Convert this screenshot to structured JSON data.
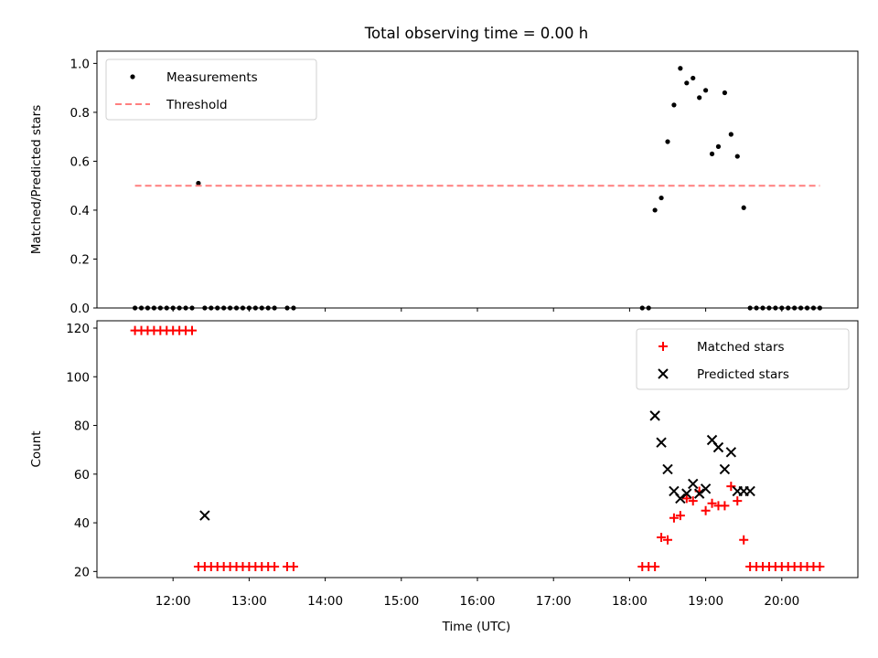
{
  "chart_data": {
    "title": "Total observing time = 0.00 h",
    "xlabel": "Time (UTC)",
    "xlim": [
      "11:00",
      "21:00"
    ],
    "xticks": [
      "12:00",
      "13:00",
      "14:00",
      "15:00",
      "16:00",
      "17:00",
      "18:00",
      "19:00",
      "20:00"
    ],
    "panels": [
      {
        "type": "scatter",
        "ylabel": "Matched/Predicted stars",
        "ylim": [
          0,
          1.05
        ],
        "yticks": [
          "0.0",
          "0.2",
          "0.4",
          "0.6",
          "0.8",
          "1.0"
        ],
        "legend_position": "top-left",
        "series": [
          {
            "name": "Measurements",
            "marker": "dot",
            "color": "#000000",
            "x": [
              "11:30",
              "11:35",
              "11:40",
              "11:45",
              "11:50",
              "11:55",
              "12:00",
              "12:05",
              "12:10",
              "12:15",
              "12:20",
              "12:25",
              "12:30",
              "12:35",
              "12:40",
              "12:45",
              "12:50",
              "12:55",
              "13:00",
              "13:05",
              "13:10",
              "13:15",
              "13:20",
              "13:30",
              "13:35",
              "18:10",
              "18:15",
              "18:20",
              "18:25",
              "18:30",
              "18:35",
              "18:40",
              "18:45",
              "18:50",
              "18:55",
              "19:00",
              "19:05",
              "19:10",
              "19:15",
              "19:20",
              "19:25",
              "19:30",
              "19:35",
              "19:40",
              "19:45",
              "19:50",
              "19:55",
              "20:00",
              "20:05",
              "20:10",
              "20:15",
              "20:20",
              "20:25",
              "20:30"
            ],
            "y": [
              0,
              0,
              0,
              0,
              0,
              0,
              0,
              0,
              0,
              0,
              0.51,
              0,
              0,
              0,
              0,
              0,
              0,
              0,
              0,
              0,
              0,
              0,
              0,
              0,
              0,
              0,
              0,
              0.4,
              0.45,
              0.68,
              0.83,
              0.98,
              0.92,
              0.94,
              0.86,
              0.89,
              0.63,
              0.66,
              0.88,
              0.71,
              0.62,
              0.41,
              0,
              0,
              0,
              0,
              0,
              0,
              0,
              0,
              0,
              0,
              0,
              0
            ]
          },
          {
            "name": "Threshold",
            "style": "dashed",
            "color": "#ff7f7f",
            "x": [
              "11:30",
              "20:30"
            ],
            "y": [
              0.5,
              0.5
            ]
          }
        ]
      },
      {
        "type": "scatter",
        "ylabel": "Count",
        "ylim": [
          17.5,
          123
        ],
        "yticks": [
          "20",
          "40",
          "60",
          "80",
          "100",
          "120"
        ],
        "legend_position": "top-right",
        "series": [
          {
            "name": "Matched stars",
            "marker": "plus",
            "color": "#ff0000",
            "x": [
              "11:30",
              "11:35",
              "11:40",
              "11:45",
              "11:50",
              "11:55",
              "12:00",
              "12:05",
              "12:10",
              "12:15",
              "12:20",
              "12:25",
              "12:30",
              "12:35",
              "12:40",
              "12:45",
              "12:50",
              "12:55",
              "13:00",
              "13:05",
              "13:10",
              "13:15",
              "13:20",
              "13:30",
              "13:35",
              "18:10",
              "18:15",
              "18:20",
              "18:25",
              "18:30",
              "18:35",
              "18:40",
              "18:45",
              "18:50",
              "18:55",
              "19:00",
              "19:05",
              "19:10",
              "19:15",
              "19:20",
              "19:25",
              "19:30",
              "19:35",
              "19:40",
              "19:45",
              "19:50",
              "19:55",
              "20:00",
              "20:05",
              "20:10",
              "20:15",
              "20:20",
              "20:25",
              "20:30"
            ],
            "y": [
              119,
              119,
              119,
              119,
              119,
              119,
              119,
              119,
              119,
              119,
              22,
              22,
              22,
              22,
              22,
              22,
              22,
              22,
              22,
              22,
              22,
              22,
              22,
              22,
              22,
              22,
              22,
              22,
              34,
              33,
              42,
              43,
              50,
              49,
              53,
              45,
              48,
              47,
              47,
              55,
              49,
              33,
              22,
              22,
              22,
              22,
              22,
              22,
              22,
              22,
              22,
              22,
              22,
              22
            ]
          },
          {
            "name": "Predicted stars",
            "marker": "x",
            "color": "#000000",
            "x": [
              "12:25",
              "18:20",
              "18:25",
              "18:30",
              "18:35",
              "18:40",
              "18:45",
              "18:50",
              "18:55",
              "19:00",
              "19:05",
              "19:10",
              "19:15",
              "19:20",
              "19:25",
              "19:30",
              "19:35"
            ],
            "y": [
              43,
              84,
              73,
              62,
              53,
              50,
              52,
              56,
              52,
              54,
              74,
              71,
              62,
              69,
              53,
              53,
              53
            ]
          }
        ]
      }
    ]
  }
}
